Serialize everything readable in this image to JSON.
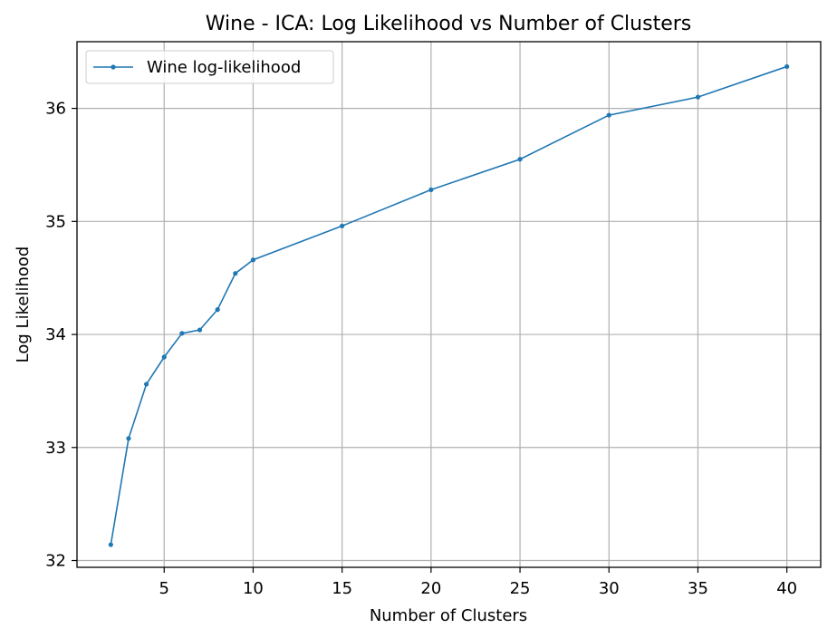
{
  "chart_data": {
    "type": "line",
    "title": "Wine - ICA: Log Likelihood vs Number of Clusters",
    "xlabel": "Number of Clusters",
    "ylabel": "Log Likelihood",
    "xlim": [
      0.1,
      41.9
    ],
    "ylim": [
      31.94,
      36.59
    ],
    "xticks": [
      5,
      10,
      15,
      20,
      25,
      30,
      35,
      40
    ],
    "yticks": [
      32,
      33,
      34,
      35,
      36
    ],
    "grid": true,
    "legend_position": "top-left",
    "series": [
      {
        "name": "Wine log-likelihood",
        "color": "#1f77b4",
        "marker": "point",
        "x": [
          2,
          3,
          4,
          5,
          6,
          7,
          8,
          9,
          10,
          15,
          20,
          25,
          30,
          35,
          40
        ],
        "y": [
          32.14,
          33.08,
          33.56,
          33.8,
          34.01,
          34.04,
          34.22,
          34.54,
          34.66,
          34.96,
          35.28,
          35.55,
          35.94,
          36.1,
          36.37
        ]
      }
    ]
  }
}
